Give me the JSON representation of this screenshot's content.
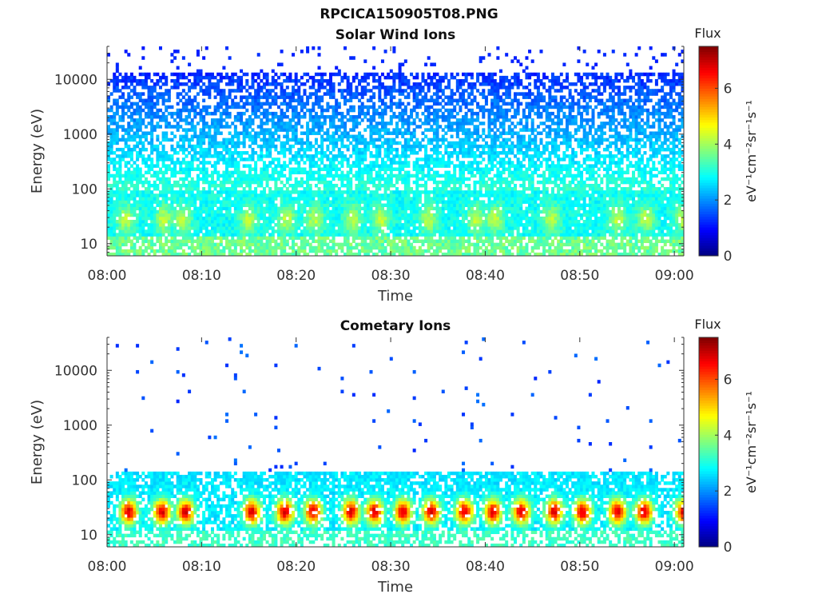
{
  "figure": {
    "title": "RPCICA150905T08.PNG"
  },
  "colormap": {
    "stops": [
      "#00007f",
      "#0000ff",
      "#007fff",
      "#00ffff",
      "#7fff7f",
      "#ffff00",
      "#ff7f00",
      "#ff0000",
      "#7f0000"
    ]
  },
  "chart_data": [
    {
      "type": "heatmap",
      "title": "Solar Wind Ions",
      "xlabel": "Time",
      "ylabel": "Energy (eV)",
      "x_ticks": [
        "08:00",
        "08:10",
        "08:20",
        "08:30",
        "08:40",
        "08:50",
        "09:00"
      ],
      "y_ticks": [
        "10",
        "100",
        "1000",
        "10000"
      ],
      "y_scale": "log",
      "ylim": [
        6,
        40000
      ],
      "xlim_minutes": [
        0,
        61
      ],
      "colorbar": {
        "label": "Flux",
        "axis_label": "eV⁻¹cm⁻²sr⁻¹s⁻¹",
        "ticks": [
          "0",
          "2",
          "4",
          "6"
        ],
        "range": [
          0,
          7.5
        ]
      },
      "peak_times_min": [
        2,
        6,
        8,
        15,
        19,
        22,
        26,
        29,
        34,
        39,
        41,
        47,
        54,
        57,
        61
      ],
      "peak_level": 4.2,
      "background_level": 2.6
    },
    {
      "type": "heatmap",
      "title": "Cometary Ions",
      "xlabel": "Time",
      "ylabel": "Energy (eV)",
      "x_ticks": [
        "08:00",
        "08:10",
        "08:20",
        "08:30",
        "08:40",
        "08:50",
        "09:00"
      ],
      "y_ticks": [
        "10",
        "100",
        "1000",
        "10000"
      ],
      "y_scale": "log",
      "ylim": [
        6,
        40000
      ],
      "xlim_minutes": [
        0,
        61
      ],
      "colorbar": {
        "label": "Flux",
        "axis_label": "eV⁻¹cm⁻²sr⁻¹s⁻¹",
        "ticks": [
          "0",
          "2",
          "4",
          "6"
        ],
        "range": [
          0,
          7.5
        ]
      },
      "peak_times_min": [
        2.3,
        5.8,
        8.3,
        15.3,
        18.8,
        21.8,
        25.8,
        28.3,
        31.3,
        34.3,
        37.8,
        40.8,
        43.8,
        47.3,
        50.3,
        54.0,
        56.8,
        61.0
      ],
      "peak_level": 6.8,
      "background_level": 2.5
    }
  ]
}
